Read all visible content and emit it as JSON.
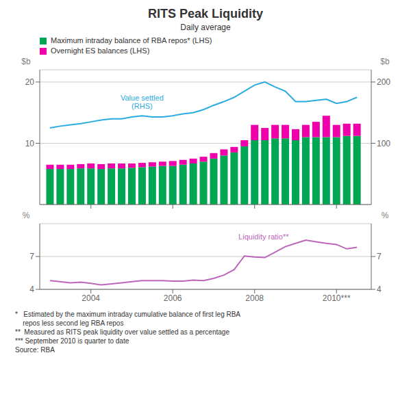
{
  "chart_data": [
    {
      "type": "bar",
      "title": "RITS Peak Liquidity",
      "subtitle": "Daily average",
      "stacked": true,
      "legend": "upper left",
      "grid": true,
      "tick_labels": "y",
      "x": [
        2003.0,
        2003.25,
        2003.5,
        2003.75,
        2004.0,
        2004.25,
        2004.5,
        2004.75,
        2005.0,
        2005.25,
        2005.5,
        2005.75,
        2006.0,
        2006.25,
        2006.5,
        2006.75,
        2007.0,
        2007.25,
        2007.5,
        2007.75,
        2008.0,
        2008.25,
        2008.5,
        2008.75,
        2009.0,
        2009.25,
        2009.5,
        2009.75,
        2010.0,
        2010.25,
        2010.5
      ],
      "series": [
        {
          "name": "Maximum intraday balance of RBA repos* (LHS)",
          "color": "#00A651",
          "values": [
            5.8,
            5.8,
            5.8,
            5.9,
            5.9,
            5.8,
            5.9,
            5.9,
            6.0,
            6.1,
            6.2,
            6.3,
            6.3,
            6.5,
            6.7,
            7.0,
            7.5,
            8.0,
            8.5,
            9.5,
            10.5,
            10.5,
            10.8,
            10.8,
            10.5,
            11.0,
            11.0,
            11.0,
            11.0,
            11.2,
            11.2
          ]
        },
        {
          "name": "Overnight ES balances (LHS)",
          "color": "#EE00AA",
          "values": [
            0.7,
            0.7,
            0.7,
            0.7,
            0.8,
            0.8,
            0.8,
            0.8,
            0.7,
            0.7,
            0.7,
            0.7,
            0.8,
            0.8,
            0.8,
            0.8,
            0.9,
            1.0,
            0.9,
            1.0,
            2.5,
            2.0,
            2.2,
            2.2,
            1.8,
            2.0,
            2.5,
            3.5,
            2.0,
            2.0,
            2.0
          ]
        },
        {
          "type": "line",
          "axis": "y2",
          "color": "#29ABE2",
          "values": [
            125,
            128,
            130,
            132,
            135,
            138,
            140,
            140,
            143,
            145,
            143,
            143,
            145,
            148,
            150,
            155,
            162,
            168,
            175,
            185,
            195,
            200,
            192,
            185,
            168,
            168,
            170,
            172,
            165,
            168,
            175
          ]
        }
      ],
      "annotations": [
        "Value settled\n(RHS)"
      ],
      "ylabel": "$b",
      "y2label": "$b",
      "xlim": [
        2002.75,
        2010.85
      ],
      "xticks": [
        2004,
        2006,
        2008,
        {
          "value": 2010,
          "label": "2010***"
        }
      ],
      "ylim": [
        0,
        22
      ],
      "yticks": [
        10,
        20
      ],
      "y2lim": [
        0,
        220
      ],
      "y2ticks": [
        100,
        200
      ]
    },
    {
      "type": "line",
      "grid": true,
      "x": [
        2003.0,
        2003.25,
        2003.5,
        2003.75,
        2004.0,
        2004.25,
        2004.5,
        2004.75,
        2005.0,
        2005.25,
        2005.5,
        2005.75,
        2006.0,
        2006.25,
        2006.5,
        2006.75,
        2007.0,
        2007.25,
        2007.5,
        2007.75,
        2008.0,
        2008.25,
        2008.5,
        2008.75,
        2009.0,
        2009.25,
        2009.5,
        2009.75,
        2010.0,
        2010.25,
        2010.5
      ],
      "series": [
        {
          "color": "#BB66BB",
          "values": [
            4.8,
            4.7,
            4.6,
            4.65,
            4.55,
            4.4,
            4.5,
            4.6,
            4.7,
            4.8,
            4.8,
            4.8,
            4.75,
            4.75,
            4.85,
            4.8,
            5.0,
            5.3,
            5.8,
            7.05,
            6.95,
            6.9,
            7.4,
            7.9,
            8.2,
            8.5,
            8.35,
            8.2,
            8.1,
            7.7,
            7.85
          ]
        }
      ],
      "annotations": [
        "Liquidity ratio**"
      ],
      "ylabel": "%",
      "y2label": "%",
      "xlim": [
        2002.75,
        2010.85
      ],
      "xticks": [
        2004,
        2006,
        2008,
        {
          "value": 2010,
          "label": "2010***"
        }
      ],
      "ylim": [
        4,
        10
      ],
      "yticks": [
        4,
        7
      ],
      "y2lim": [
        4,
        10
      ],
      "y2ticks": [
        4,
        7
      ],
      "footnotes": [
        "*   Estimated by the maximum intraday cumulative balance of first leg RBA\n    repos less second leg RBA repos",
        "**  Measured as RITS peak liquidity over value settled as a percentage",
        "*** September 2010 is quarter to date",
        "Source: RBA"
      ]
    }
  ]
}
